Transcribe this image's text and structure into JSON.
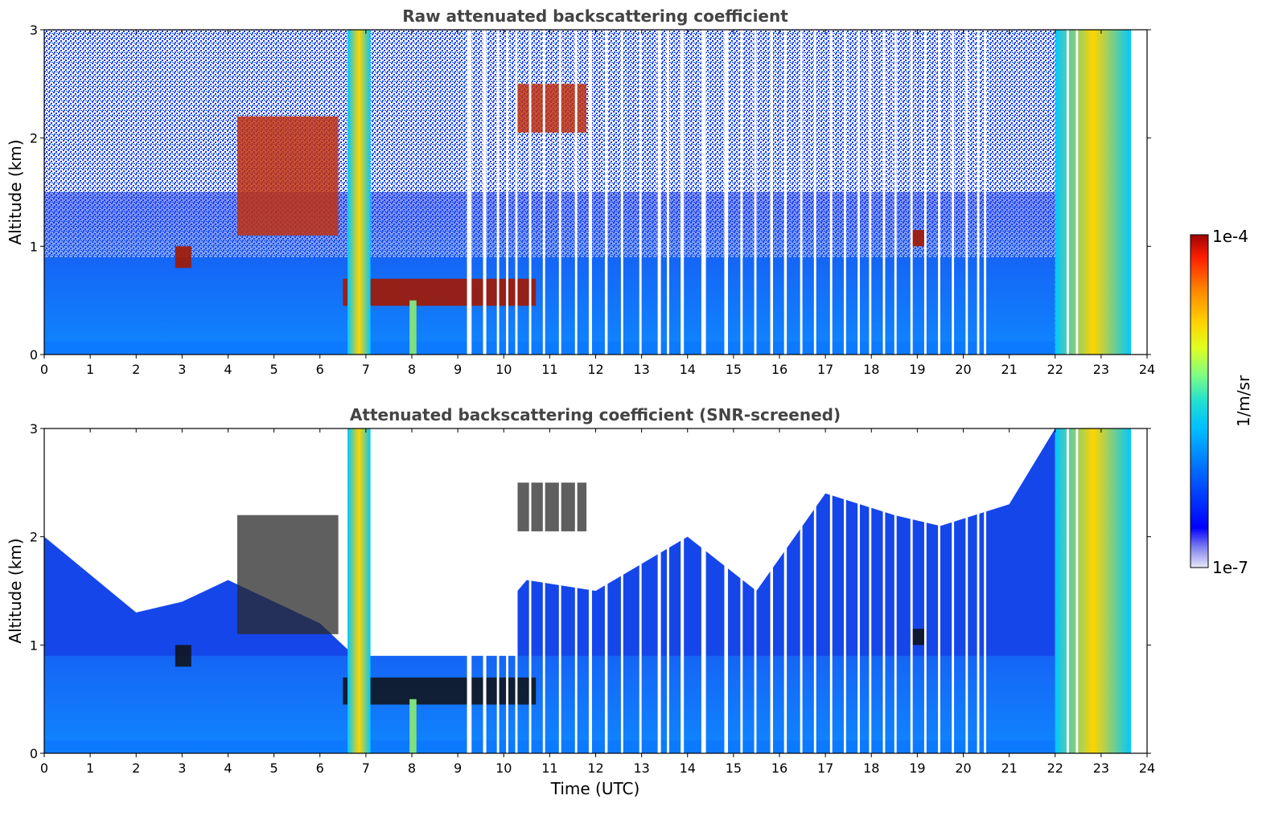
{
  "chart_data": [
    {
      "type": "heatmap",
      "title": "Raw attenuated backscattering coefficient",
      "xlabel": "",
      "ylabel": "Altitude (km)",
      "xlim": [
        0,
        24
      ],
      "ylim": [
        0,
        3
      ],
      "x_ticks": [
        "0",
        "1",
        "2",
        "3",
        "4",
        "5",
        "6",
        "7",
        "8",
        "9",
        "10",
        "11",
        "12",
        "13",
        "14",
        "15",
        "16",
        "17",
        "18",
        "19",
        "20",
        "21",
        "22",
        "23",
        "24"
      ],
      "y_ticks": [
        "0",
        "1",
        "2",
        "3"
      ],
      "missing_data_bands_utc": [
        [
          9.2,
          9.3
        ],
        [
          9.55,
          9.62
        ],
        [
          9.85,
          9.9
        ],
        [
          10.05,
          10.1
        ],
        [
          10.25,
          10.3
        ],
        [
          10.55,
          10.6
        ],
        [
          10.85,
          10.9
        ],
        [
          11.2,
          11.25
        ],
        [
          11.55,
          11.6
        ],
        [
          11.85,
          11.92
        ],
        [
          12.2,
          12.26
        ],
        [
          12.55,
          12.6
        ],
        [
          12.95,
          13.0
        ],
        [
          13.35,
          13.42
        ],
        [
          13.55,
          13.6
        ],
        [
          13.85,
          13.92
        ],
        [
          14.3,
          14.4
        ],
        [
          14.8,
          14.88
        ],
        [
          15.15,
          15.2
        ],
        [
          15.45,
          15.5
        ],
        [
          15.8,
          15.86
        ],
        [
          16.1,
          16.16
        ],
        [
          16.45,
          16.5
        ],
        [
          16.75,
          16.8
        ],
        [
          17.1,
          17.15
        ],
        [
          17.4,
          17.45
        ],
        [
          17.7,
          17.75
        ],
        [
          17.95,
          18.0
        ],
        [
          18.25,
          18.3
        ],
        [
          18.5,
          18.55
        ],
        [
          18.85,
          18.9
        ],
        [
          19.15,
          19.2
        ],
        [
          19.45,
          19.5
        ],
        [
          19.75,
          19.8
        ],
        [
          20.05,
          20.1
        ],
        [
          20.3,
          20.35
        ],
        [
          20.45,
          20.5
        ],
        [
          22.25,
          22.3
        ],
        [
          22.45,
          22.5
        ],
        [
          23.65,
          24.0
        ]
      ],
      "features": [
        {
          "kind": "boundary-layer",
          "t_start": 0,
          "t_end": 22,
          "top_km": 0.9
        },
        {
          "kind": "low-cloud",
          "t_start": 6.5,
          "t_end": 10.7,
          "alt_km": [
            0.45,
            0.7
          ]
        },
        {
          "kind": "aerosol-layer",
          "t_start": 10.3,
          "t_end": 11.8,
          "alt_km": [
            2.05,
            2.5
          ]
        },
        {
          "kind": "aerosol-layer",
          "t_start": 4.2,
          "t_end": 6.4,
          "alt_km": [
            1.1,
            2.2
          ]
        },
        {
          "kind": "cloud",
          "t_start": 2.85,
          "t_end": 3.2,
          "alt_km": [
            0.8,
            1.0
          ]
        },
        {
          "kind": "cloud",
          "t_start": 18.85,
          "t_end": 19.2,
          "alt_km": [
            1.0,
            1.15
          ]
        },
        {
          "kind": "precipitation",
          "t_start": 6.6,
          "t_end": 7.1,
          "alt_km": [
            0,
            3
          ]
        },
        {
          "kind": "precipitation",
          "t_start": 22.0,
          "t_end": 23.65,
          "alt_km": [
            0,
            3
          ]
        }
      ]
    },
    {
      "type": "heatmap",
      "title": "Attenuated backscattering coefficient (SNR-screened)",
      "xlabel": "Time (UTC)",
      "ylabel": "Altitude (km)",
      "xlim": [
        0,
        24
      ],
      "ylim": [
        0,
        3
      ],
      "x_ticks": [
        "0",
        "1",
        "2",
        "3",
        "4",
        "5",
        "6",
        "7",
        "8",
        "9",
        "10",
        "11",
        "12",
        "13",
        "14",
        "15",
        "16",
        "17",
        "18",
        "19",
        "20",
        "21",
        "22",
        "23",
        "24"
      ],
      "y_ticks": [
        "0",
        "1",
        "2",
        "3"
      ],
      "screened_top_km_approx": [
        [
          0,
          2.0
        ],
        [
          2,
          1.3
        ],
        [
          3,
          1.4
        ],
        [
          4,
          1.6
        ],
        [
          6,
          1.2
        ],
        [
          7,
          0.8
        ],
        [
          9,
          0.85
        ],
        [
          10.5,
          1.6
        ],
        [
          12,
          1.5
        ],
        [
          14,
          2.0
        ],
        [
          15.5,
          1.5
        ],
        [
          17,
          2.4
        ],
        [
          18.5,
          2.2
        ],
        [
          19.5,
          2.1
        ],
        [
          21,
          2.3
        ],
        [
          22,
          3.0
        ]
      ]
    }
  ],
  "colorbar": {
    "label": "1/m/sr",
    "min_label": "1e-7",
    "max_label": "1e-4",
    "scale": "log",
    "range": [
      1e-07,
      0.0001
    ],
    "colormap": [
      "#e8e8f8",
      "#8080f0",
      "#0000ff",
      "#0070ff",
      "#00c0ff",
      "#20e0d0",
      "#80ff80",
      "#e0ff20",
      "#ffd000",
      "#ff8000",
      "#ff2000",
      "#a00000"
    ]
  },
  "colors": {
    "low": "#0b4ee6",
    "bl": "#1f7bff",
    "cloud": "#a31800",
    "missing": "#ffffff"
  }
}
